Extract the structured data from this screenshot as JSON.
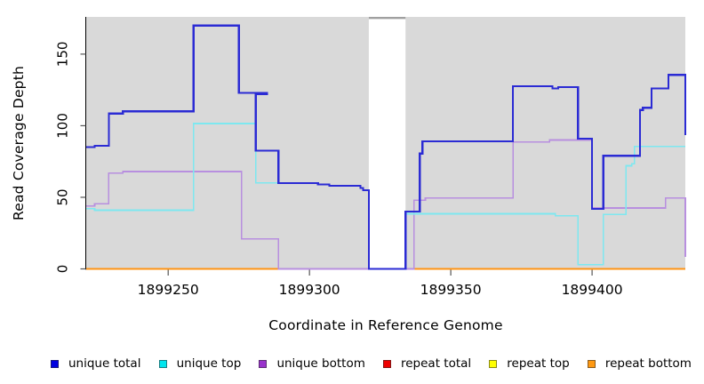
{
  "chart_data": {
    "type": "line",
    "step": "after",
    "title": "",
    "xlabel": "Coordinate in Reference Genome",
    "ylabel": "Read Coverage Depth",
    "xlim": [
      1899221,
      1899433
    ],
    "ylim": [
      0,
      176
    ],
    "xticks": [
      1899250,
      1899300,
      1899350,
      1899400
    ],
    "yticks": [
      0,
      50,
      100,
      150
    ],
    "grid": false,
    "legend_position": "bottom",
    "panel_bg": "#d9d9d9",
    "gap_region": {
      "start": 1899321,
      "end": 1899334,
      "fill": "#ffffff",
      "cap_color": "#a0a0a0"
    },
    "axis_color": "#000000",
    "tick_color": "#555555",
    "draw_order": [
      3,
      4,
      5,
      2,
      1,
      0
    ],
    "series": [
      {
        "name": "unique total",
        "color": "#2b2bd4",
        "legend_color": "#0000e0",
        "width": 2.2,
        "points": [
          [
            1899221,
            85
          ],
          [
            1899224,
            86
          ],
          [
            1899229,
            108.5
          ],
          [
            1899234,
            110
          ],
          [
            1899259,
            170
          ],
          [
            1899275,
            123
          ],
          [
            1899285,
            122
          ],
          [
            1899281,
            82.5
          ],
          [
            1899289,
            60
          ],
          [
            1899303,
            59
          ],
          [
            1899307,
            58
          ],
          [
            1899318,
            56.5
          ],
          [
            1899319,
            55
          ],
          [
            1899321,
            0
          ],
          [
            1899334,
            40
          ],
          [
            1899339,
            80.5
          ],
          [
            1899340,
            89
          ],
          [
            1899372,
            127.5
          ],
          [
            1899386,
            126
          ],
          [
            1899388,
            127
          ],
          [
            1899395,
            91
          ],
          [
            1899400,
            42
          ],
          [
            1899404,
            79
          ],
          [
            1899417,
            111
          ],
          [
            1899418,
            112.5
          ],
          [
            1899421,
            126
          ],
          [
            1899427,
            135.5
          ],
          [
            1899433,
            93.5
          ]
        ]
      },
      {
        "name": "unique top",
        "color": "#7de8f0",
        "legend_color": "#00e5ee",
        "width": 1.6,
        "points": [
          [
            1899221,
            42
          ],
          [
            1899224,
            41
          ],
          [
            1899259,
            101.5
          ],
          [
            1899281,
            60
          ],
          [
            1899303,
            59
          ],
          [
            1899307,
            58
          ],
          [
            1899318,
            56.5
          ],
          [
            1899319,
            55
          ],
          [
            1899321,
            0
          ],
          [
            1899334,
            38.5
          ],
          [
            1899387,
            37
          ],
          [
            1899395,
            3
          ],
          [
            1899404,
            38
          ],
          [
            1899412,
            72
          ],
          [
            1899414,
            73.5
          ],
          [
            1899415,
            85.5
          ]
        ]
      },
      {
        "name": "unique bottom",
        "color": "#b88fdf",
        "legend_color": "#9932cc",
        "width": 1.6,
        "points": [
          [
            1899221,
            44
          ],
          [
            1899224,
            45.5
          ],
          [
            1899229,
            67
          ],
          [
            1899234,
            68
          ],
          [
            1899276,
            21
          ],
          [
            1899289,
            0
          ],
          [
            1899337,
            48
          ],
          [
            1899341,
            49.5
          ],
          [
            1899372,
            88.5
          ],
          [
            1899385,
            90
          ],
          [
            1899400,
            42.5
          ],
          [
            1899426,
            49.5
          ],
          [
            1899433,
            8.5
          ]
        ]
      },
      {
        "name": "repeat total",
        "color": "#dd2c2c",
        "legend_color": "#ee0000",
        "width": 1.6,
        "points": [
          [
            1899221,
            0
          ]
        ]
      },
      {
        "name": "repeat top",
        "color": "#ffff4d",
        "legend_color": "#ffff00",
        "width": 1.6,
        "points": [
          [
            1899221,
            0
          ]
        ]
      },
      {
        "name": "repeat bottom",
        "color": "#ff9414",
        "legend_color": "#ff9912",
        "width": 2,
        "points": [
          [
            1899221,
            0
          ]
        ]
      }
    ]
  }
}
